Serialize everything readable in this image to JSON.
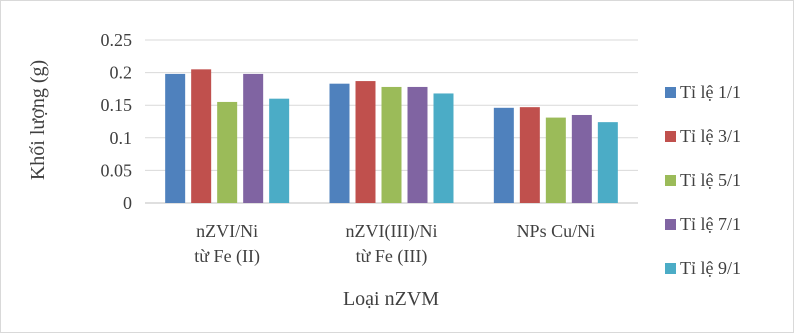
{
  "chart_data": {
    "type": "bar",
    "title": "",
    "xlabel": "Loại nZVM",
    "ylabel": "Khối lượng (g)",
    "ylim": [
      0,
      0.25
    ],
    "yticks": [
      0,
      0.05,
      0.1,
      0.15,
      0.2,
      0.25
    ],
    "ytick_labels": [
      "0",
      "0.05",
      "0.1",
      "0.15",
      "0.2",
      "0.25"
    ],
    "grid": true,
    "legend_position": "right",
    "categories": [
      [
        "nZVI/Ni",
        "từ Fe (II)"
      ],
      [
        "nZVI(III)/Ni",
        "từ Fe (III)"
      ],
      [
        "NPs Cu/Ni"
      ]
    ],
    "series": [
      {
        "name": "Tỉ lệ 1/1",
        "color": "#4f81bd",
        "values": [
          0.198,
          0.183,
          0.146
        ]
      },
      {
        "name": "Tỉ lệ 3/1",
        "color": "#c0504d",
        "values": [
          0.205,
          0.187,
          0.147
        ]
      },
      {
        "name": "Tỉ lệ 5/1",
        "color": "#9bbb59",
        "values": [
          0.155,
          0.178,
          0.131
        ]
      },
      {
        "name": "Tỉ lệ 7/1",
        "color": "#8064a2",
        "values": [
          0.198,
          0.178,
          0.135
        ]
      },
      {
        "name": "Tỉ lệ 9/1",
        "color": "#4bacc6",
        "values": [
          0.16,
          0.168,
          0.124
        ]
      }
    ]
  }
}
